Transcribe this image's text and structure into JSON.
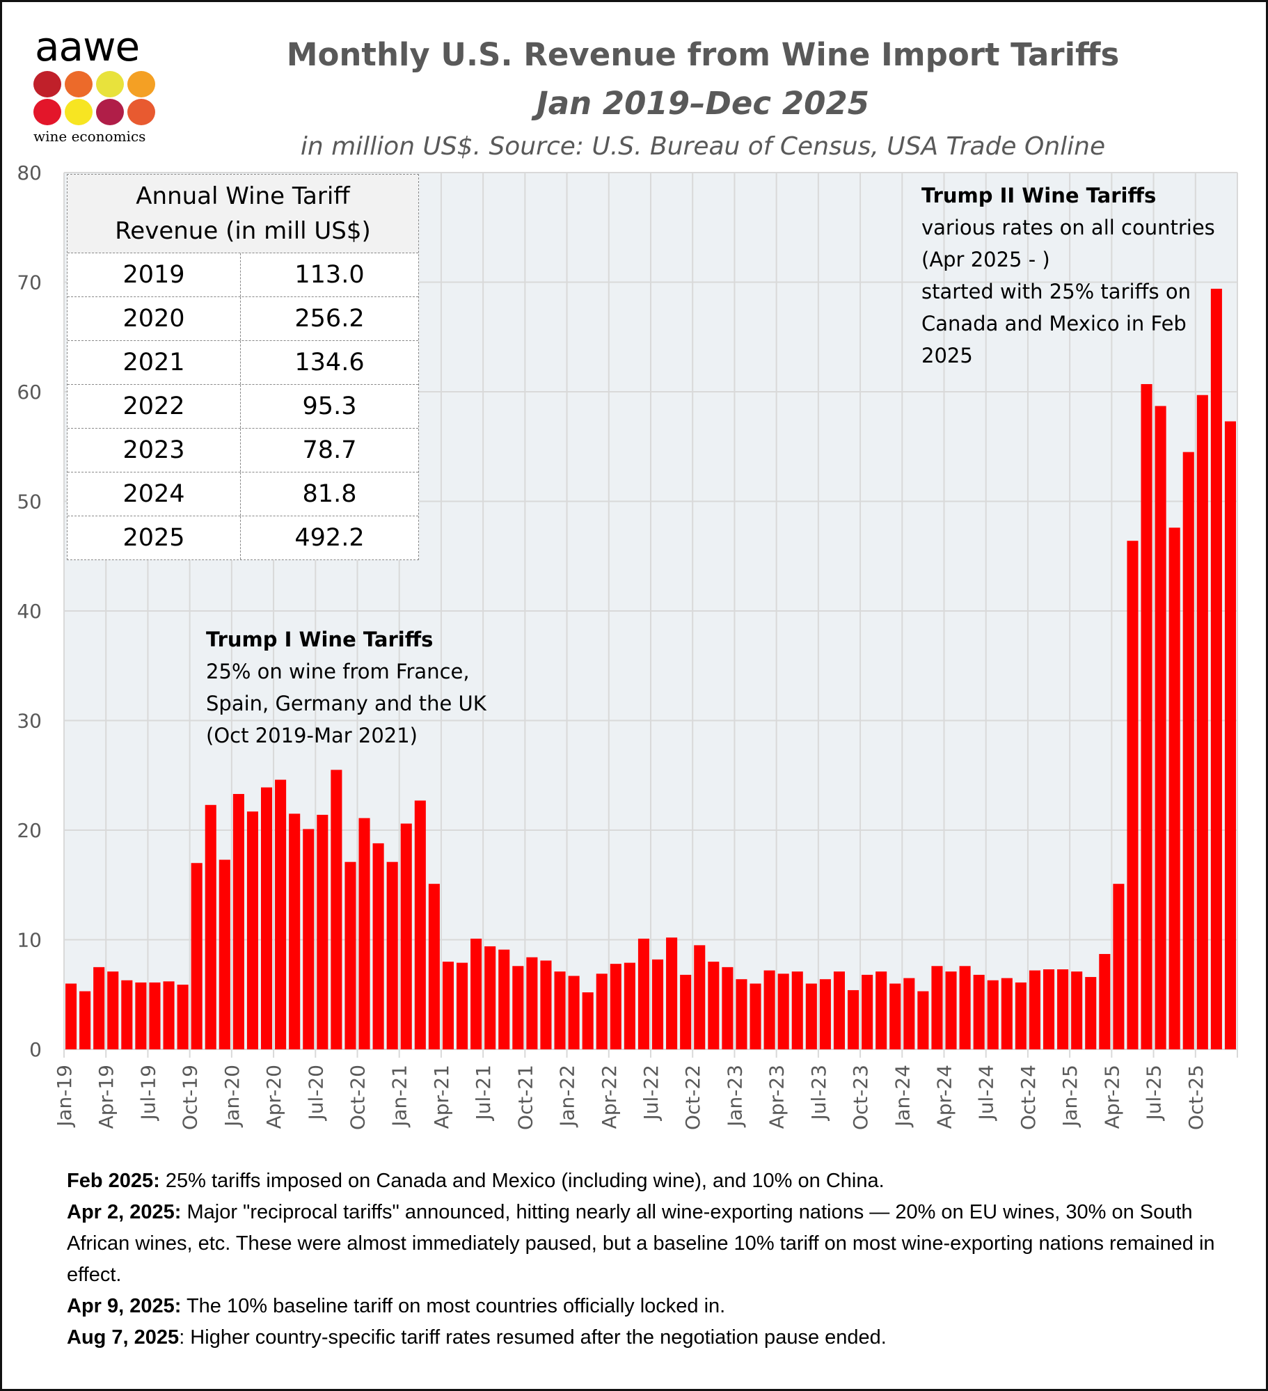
{
  "logo": {
    "word": "aawe",
    "subtitle": "wine economics",
    "dot_colors": [
      "#c0202a",
      "#ec6a2a",
      "#e8e23c",
      "#f4a024",
      "#e3162a",
      "#f7e522",
      "#b01e48",
      "#e85a30"
    ]
  },
  "header": {
    "title": "Monthly U.S. Revenue from Wine Import Tariffs",
    "period": "Jan 2019–Dec 2025",
    "source": "in  million US$. Source: U.S. Bureau of Census, USA Trade Online"
  },
  "annual_table": {
    "title_line1": "Annual Wine Tariff",
    "title_line2": "Revenue (in mill US$)",
    "rows": [
      {
        "year": "2019",
        "value": "113.0"
      },
      {
        "year": "2020",
        "value": "256.2"
      },
      {
        "year": "2021",
        "value": "134.6"
      },
      {
        "year": "2022",
        "value": "95.3"
      },
      {
        "year": "2023",
        "value": "78.7"
      },
      {
        "year": "2024",
        "value": "81.8"
      },
      {
        "year": "2025",
        "value": "492.2"
      }
    ]
  },
  "annotations": {
    "trump1": {
      "title": "Trump I Wine Tariffs",
      "lines": [
        "25% on wine from France,",
        "Spain, Germany and the UK",
        "(Oct 2019-Mar 2021)"
      ]
    },
    "trump2": {
      "title": "Trump II Wine Tariffs",
      "lines": [
        "various rates on all countries",
        "(Apr 2025 - )",
        "started with 25% tariffs on",
        "Canada and Mexico in Feb",
        "2025"
      ]
    }
  },
  "notes": [
    {
      "label": "Feb 2025:",
      "text": " 25% tariffs imposed on Canada and Mexico (including wine), and 10% on China."
    },
    {
      "label": "Apr 2, 2025:",
      "text": " Major \"reciprocal tariffs\" announced, hitting nearly all wine-exporting nations — 20% on EU wines, 30% on South African wines, etc. These were almost immediately paused, but a baseline 10% tariff on most wine-exporting nations remained in effect."
    },
    {
      "label": "Apr 9, 2025:",
      "text": " The 10% baseline tariff on most countries officially locked in."
    },
    {
      "label": "Aug 7, 2025",
      "text": ": Higher country-specific tariff rates resumed after the negotiation pause ended."
    }
  ],
  "colors": {
    "bar": "#ff0000",
    "plot_bg": "#edf1f4",
    "grid": "#d9d9d9",
    "axis_text": "#595959"
  },
  "chart_data": {
    "type": "bar",
    "title": "Monthly U.S. Revenue from Wine Import Tariffs",
    "subtitle": "Jan 2019–Dec 2025, in million US$. Source: U.S. Bureau of Census, USA Trade Online",
    "xlabel": "",
    "ylabel": "",
    "ylim": [
      0,
      80
    ],
    "yticks": [
      0,
      10,
      20,
      30,
      40,
      50,
      60,
      70,
      80
    ],
    "grid": true,
    "start": "Jan-19",
    "tick_labels": [
      "Jan-19",
      "Apr-19",
      "Jul-19",
      "Oct-19",
      "Jan-20",
      "Apr-20",
      "Jul-20",
      "Oct-20",
      "Jan-21",
      "Apr-21",
      "Jul-21",
      "Oct-21",
      "Jan-22",
      "Apr-22",
      "Jul-22",
      "Oct-22",
      "Jan-23",
      "Apr-23",
      "Jul-23",
      "Oct-23",
      "Jan-24",
      "Apr-24",
      "Jul-24",
      "Oct-24",
      "Jan-25",
      "Apr-25",
      "Jul-25",
      "Oct-25"
    ],
    "tick_every": 3,
    "values": [
      6.0,
      5.3,
      7.5,
      7.1,
      6.3,
      6.1,
      6.1,
      6.2,
      5.9,
      17.0,
      22.3,
      17.3,
      23.3,
      21.7,
      23.9,
      24.6,
      21.5,
      20.1,
      21.4,
      25.5,
      17.1,
      21.1,
      18.8,
      17.1,
      20.6,
      22.7,
      15.1,
      8.0,
      7.9,
      10.1,
      9.4,
      9.1,
      7.6,
      8.4,
      8.1,
      7.1,
      6.7,
      5.2,
      6.9,
      7.8,
      7.9,
      10.1,
      8.2,
      10.2,
      6.8,
      9.5,
      8.0,
      7.5,
      6.4,
      6.0,
      7.2,
      6.9,
      7.1,
      6.0,
      6.4,
      7.1,
      5.4,
      6.8,
      7.1,
      6.0,
      6.5,
      5.3,
      7.6,
      7.1,
      7.6,
      6.8,
      6.3,
      6.5,
      6.1,
      7.2,
      7.3,
      7.3,
      7.1,
      6.6,
      8.7,
      15.1,
      46.4,
      60.7,
      58.7,
      47.6,
      54.5,
      59.7,
      69.4,
      57.3
    ]
  }
}
